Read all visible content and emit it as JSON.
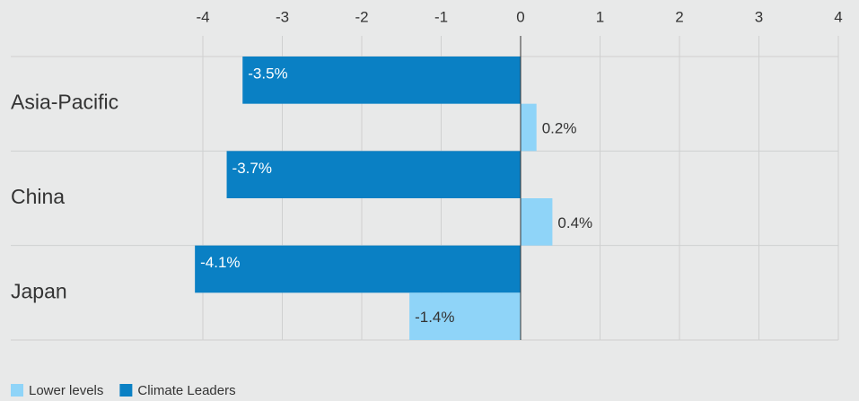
{
  "chart_data": {
    "type": "hbar",
    "categories": [
      "Asia-Pacific",
      "China",
      "Japan"
    ],
    "series": [
      {
        "name": "Lower levels",
        "color": "#8fd4f8",
        "values": [
          0.2,
          0.4,
          -1.4
        ],
        "value_labels": [
          "0.2%",
          "0.4%",
          "-1.4%"
        ]
      },
      {
        "name": "Climate Leaders",
        "color": "#0a80c4",
        "values": [
          -3.5,
          -3.7,
          -4.1
        ],
        "value_labels": [
          "-3.5%",
          "-3.7%",
          "-4.1%"
        ]
      }
    ],
    "xlim": [
      -4,
      4
    ],
    "xticks": [
      -4,
      -3,
      -2,
      -1,
      0,
      1,
      2,
      3,
      4
    ],
    "grid": true,
    "legend": "bottom-left"
  }
}
